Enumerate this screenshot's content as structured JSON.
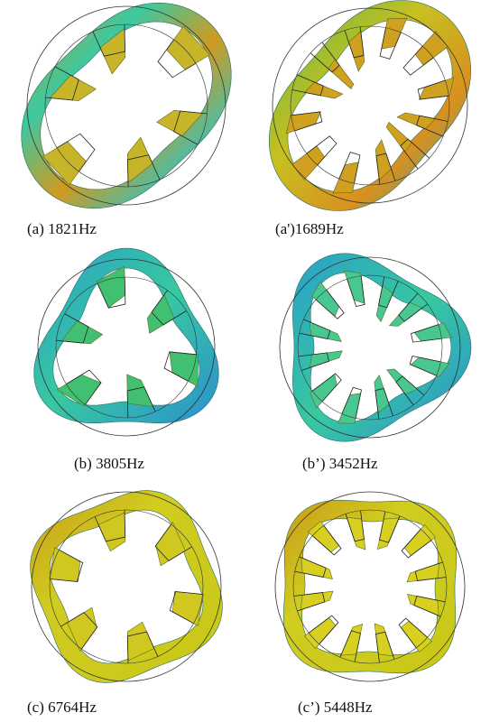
{
  "panels": [
    {
      "caption": "(a) 1821Hz"
    },
    {
      "caption": "(a')1689Hz"
    },
    {
      "caption": "(b) 3805Hz"
    },
    {
      "caption": "(b’) 3452Hz"
    },
    {
      "caption": "(c) 6764Hz"
    },
    {
      "caption": "(c’) 5448Hz"
    }
  ]
}
